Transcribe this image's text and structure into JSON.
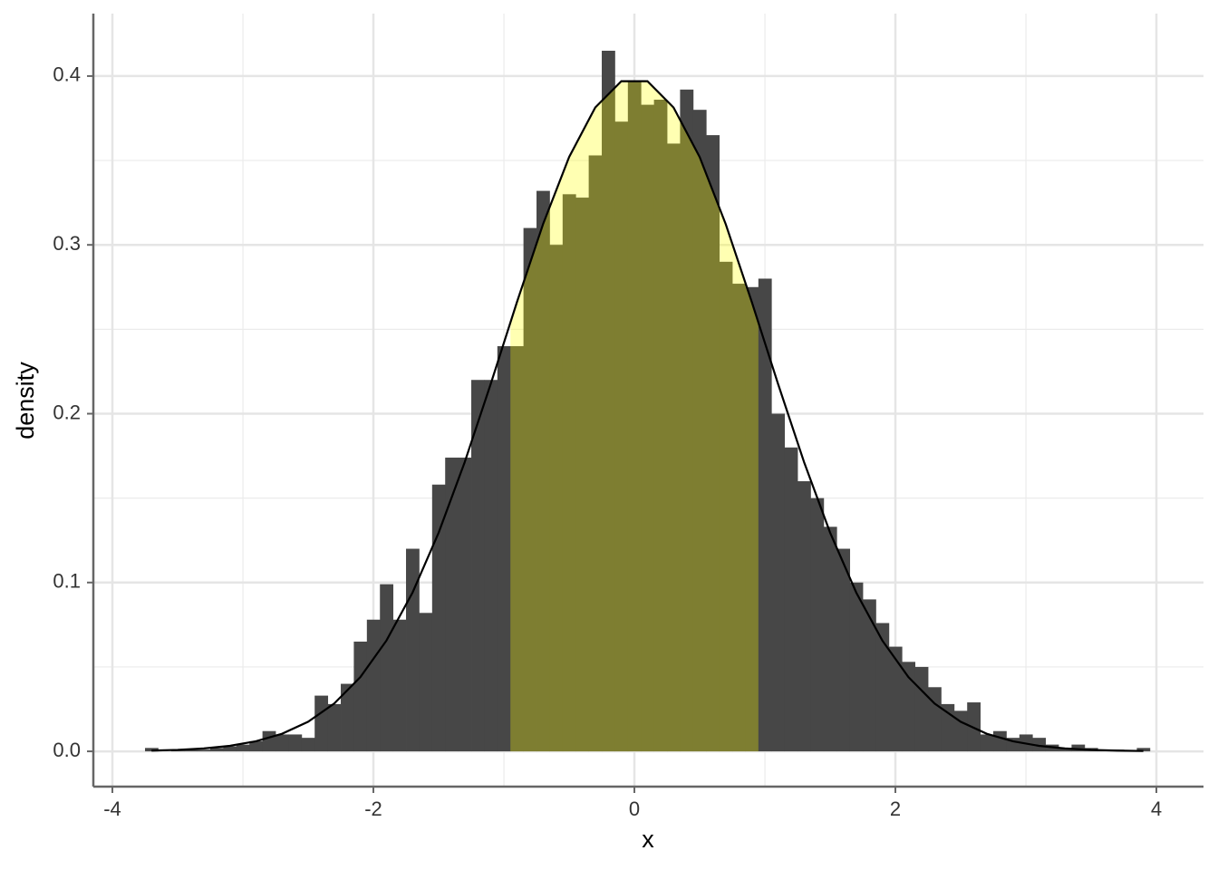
{
  "chart_data": {
    "type": "histogram",
    "xlabel": "x",
    "ylabel": "density",
    "bins": [
      -3.75,
      -3.65,
      -3.55,
      -3.45,
      -3.35,
      -3.25,
      -3.15,
      -3.05,
      -2.95,
      -2.85,
      -2.75,
      -2.65,
      -2.55,
      -2.45,
      -2.35,
      -2.25,
      -2.15,
      -2.05,
      -1.95,
      -1.85,
      -1.75,
      -1.65,
      -1.55,
      -1.45,
      -1.35,
      -1.25,
      -1.15,
      -1.05,
      -0.95,
      -0.85,
      -0.75,
      -0.65,
      -0.55,
      -0.45,
      -0.35,
      -0.25,
      -0.15,
      -0.05,
      0.05,
      0.15,
      0.25,
      0.35,
      0.45,
      0.55,
      0.65,
      0.75,
      0.85,
      0.95,
      1.05,
      1.15,
      1.25,
      1.35,
      1.45,
      1.55,
      1.65,
      1.75,
      1.85,
      1.95,
      2.05,
      2.15,
      2.25,
      2.35,
      2.45,
      2.55,
      2.65,
      2.75,
      2.85,
      2.95,
      3.05,
      3.15,
      3.25,
      3.35,
      3.45,
      3.55,
      3.65,
      3.75,
      3.85,
      3.95
    ],
    "values": [
      0.002,
      0,
      0.001,
      0.001,
      0.001,
      0.002,
      0.003,
      0.004,
      0.006,
      0.012,
      0.01,
      0.01,
      0.008,
      0.033,
      0.028,
      0.04,
      0.065,
      0.078,
      0.099,
      0.078,
      0.12,
      0.082,
      0.158,
      0.174,
      0.174,
      0.22,
      0.22,
      0.24,
      0.24,
      0.31,
      0.332,
      0.3,
      0.33,
      0.328,
      0.353,
      0.415,
      0.373,
      0.397,
      0.383,
      0.386,
      0.36,
      0.392,
      0.38,
      0.365,
      0.29,
      0.277,
      0.275,
      0.28,
      0.2,
      0.18,
      0.16,
      0.15,
      0.133,
      0.12,
      0.1,
      0.09,
      0.076,
      0.062,
      0.053,
      0.05,
      0.038,
      0.028,
      0.024,
      0.029,
      0.01,
      0.012,
      0.008,
      0.01,
      0.008,
      0.004,
      0.002,
      0.004,
      0.002,
      0.001,
      0.001,
      0,
      0.002
    ],
    "color": "#474747",
    "curve": {
      "color": "#000000",
      "x": [
        -3.7,
        -3.5,
        -3.3,
        -3.1,
        -2.9,
        -2.7,
        -2.5,
        -2.3,
        -2.1,
        -1.9,
        -1.7,
        -1.5,
        -1.3,
        -1.1,
        -0.9,
        -0.7,
        -0.5,
        -0.3,
        -0.1,
        0.1,
        0.3,
        0.5,
        0.7,
        0.9,
        1.1,
        1.3,
        1.5,
        1.7,
        1.9,
        2.1,
        2.3,
        2.5,
        2.7,
        2.9,
        3.1,
        3.3,
        3.5,
        3.7,
        3.9
      ],
      "values": [
        0.000425,
        0.000873,
        0.001723,
        0.003267,
        0.005953,
        0.010421,
        0.017528,
        0.028327,
        0.043984,
        0.065616,
        0.094049,
        0.129518,
        0.171369,
        0.217852,
        0.266085,
        0.312254,
        0.352065,
        0.381388,
        0.396953,
        0.396953,
        0.381388,
        0.352065,
        0.312254,
        0.266085,
        0.217852,
        0.171369,
        0.129518,
        0.094049,
        0.065616,
        0.043984,
        0.028327,
        0.017528,
        0.010421,
        0.005953,
        0.003267,
        0.001723,
        0.000873,
        0.000425,
        0.000199
      ]
    },
    "shade": {
      "range": [
        -0.95,
        0.95
      ],
      "color": "#ffff00",
      "opacity": 0.3
    },
    "xlim": [
      -4.146,
      4.361
    ],
    "ylim": [
      -0.0209,
      0.437
    ],
    "xticks": [
      -4,
      -2,
      0,
      2,
      4
    ],
    "yticks": [
      {
        "value": 0,
        "label": "0.0"
      },
      0.1,
      0.2,
      0.3,
      0.4
    ],
    "minor_xticks": [
      -3,
      -1,
      1,
      3
    ],
    "minor_yticks": [
      0.05,
      0.15,
      0.25,
      0.35
    ],
    "grid": true
  }
}
